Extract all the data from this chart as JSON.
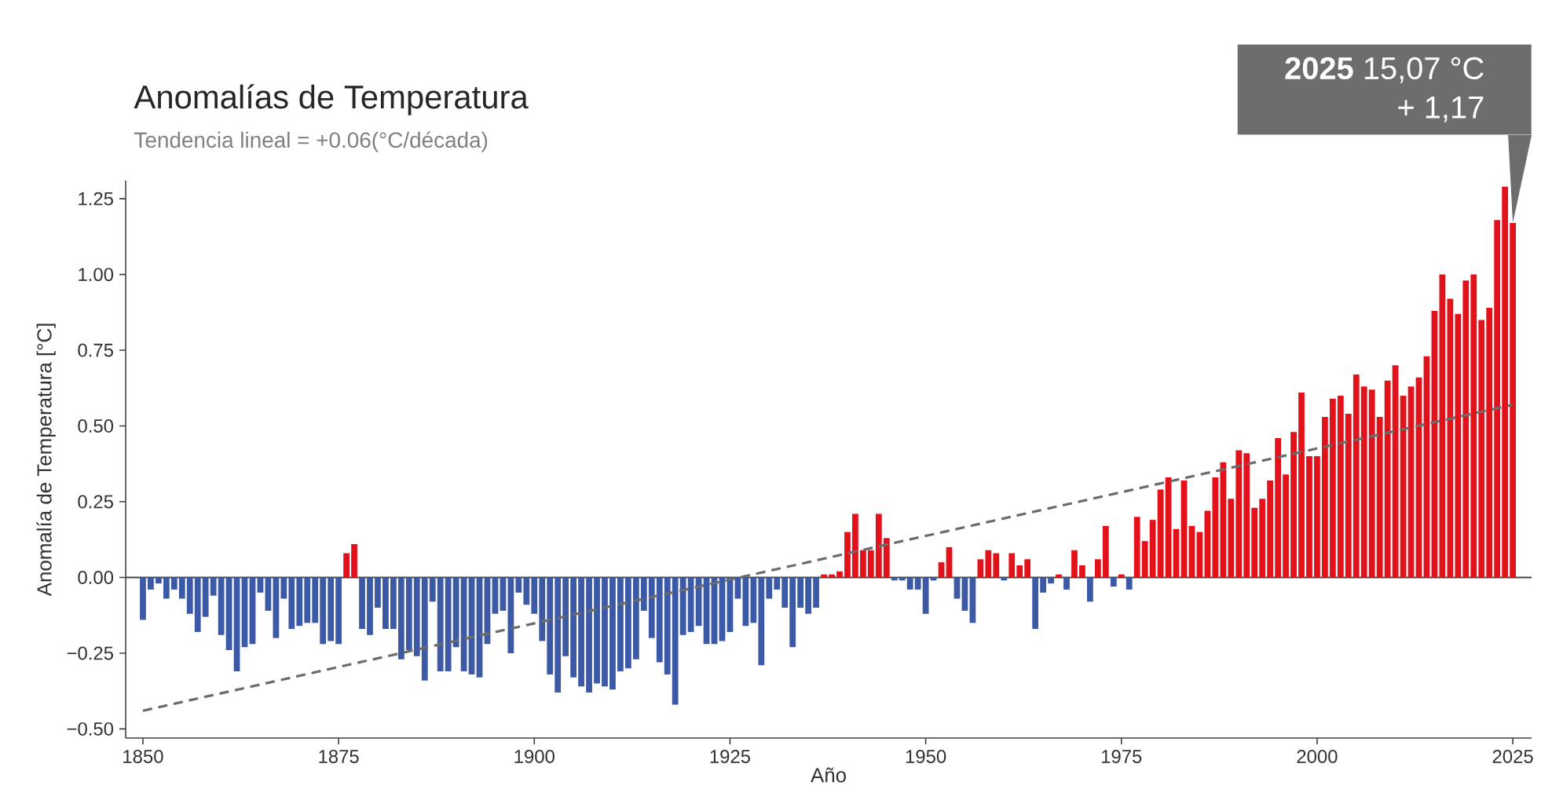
{
  "chart_data": {
    "type": "bar",
    "title": "Anomalías de Temperatura",
    "subtitle": "Tendencia lineal = +0.06(°C/década)",
    "xlabel": "Año",
    "ylabel": "Anomalía de Temperatura [°C]",
    "annotations": [
      "**2025** 15,07 °C",
      {
        "text": "+ 1,17",
        "x": 2025,
        "y": 1.17
      }
    ],
    "x": [
      1850,
      1851,
      1852,
      1853,
      1854,
      1855,
      1856,
      1857,
      1858,
      1859,
      1860,
      1861,
      1862,
      1863,
      1864,
      1865,
      1866,
      1867,
      1868,
      1869,
      1870,
      1871,
      1872,
      1873,
      1874,
      1875,
      1876,
      1877,
      1878,
      1879,
      1880,
      1881,
      1882,
      1883,
      1884,
      1885,
      1886,
      1887,
      1888,
      1889,
      1890,
      1891,
      1892,
      1893,
      1894,
      1895,
      1896,
      1897,
      1898,
      1899,
      1900,
      1901,
      1902,
      1903,
      1904,
      1905,
      1906,
      1907,
      1908,
      1909,
      1910,
      1911,
      1912,
      1913,
      1914,
      1915,
      1916,
      1917,
      1918,
      1919,
      1920,
      1921,
      1922,
      1923,
      1924,
      1925,
      1926,
      1927,
      1928,
      1929,
      1930,
      1931,
      1932,
      1933,
      1934,
      1935,
      1936,
      1937,
      1938,
      1939,
      1940,
      1941,
      1942,
      1943,
      1944,
      1945,
      1946,
      1947,
      1948,
      1949,
      1950,
      1951,
      1952,
      1953,
      1954,
      1955,
      1956,
      1957,
      1958,
      1959,
      1960,
      1961,
      1962,
      1963,
      1964,
      1965,
      1966,
      1967,
      1968,
      1969,
      1970,
      1971,
      1972,
      1973,
      1974,
      1975,
      1976,
      1977,
      1978,
      1979,
      1980,
      1981,
      1982,
      1983,
      1984,
      1985,
      1986,
      1987,
      1988,
      1989,
      1990,
      1991,
      1992,
      1993,
      1994,
      1995,
      1996,
      1997,
      1998,
      1999,
      2000,
      2001,
      2002,
      2003,
      2004,
      2005,
      2006,
      2007,
      2008,
      2009,
      2010,
      2011,
      2012,
      2013,
      2014,
      2015,
      2016,
      2017,
      2018,
      2019,
      2020,
      2021,
      2022,
      2023,
      2024,
      2025
    ],
    "series": [
      {
        "values": [
          -0.14,
          -0.04,
          -0.02,
          -0.07,
          -0.04,
          -0.07,
          -0.12,
          -0.18,
          -0.13,
          -0.06,
          -0.19,
          -0.24,
          -0.31,
          -0.23,
          -0.22,
          -0.05,
          -0.11,
          -0.2,
          -0.07,
          -0.17,
          -0.16,
          -0.15,
          -0.15,
          -0.22,
          -0.21,
          -0.22,
          0.08,
          0.11,
          -0.17,
          -0.19,
          -0.1,
          -0.17,
          -0.17,
          -0.27,
          -0.24,
          -0.26,
          -0.34,
          -0.08,
          -0.31,
          -0.31,
          -0.23,
          -0.31,
          -0.32,
          -0.33,
          -0.22,
          -0.12,
          -0.11,
          -0.25,
          -0.05,
          -0.09,
          -0.12,
          -0.21,
          -0.32,
          -0.38,
          -0.26,
          -0.33,
          -0.36,
          -0.38,
          -0.35,
          -0.36,
          -0.37,
          -0.31,
          -0.3,
          -0.27,
          -0.11,
          -0.2,
          -0.28,
          -0.32,
          -0.42,
          -0.19,
          -0.18,
          -0.16,
          -0.22,
          -0.22,
          -0.21,
          -0.18,
          -0.07,
          -0.16,
          -0.15,
          -0.29,
          -0.07,
          -0.04,
          -0.1,
          -0.23,
          -0.1,
          -0.12,
          -0.1,
          0.01,
          0.01,
          0.02,
          0.15,
          0.21,
          0.09,
          0.09,
          0.21,
          0.13,
          -0.01,
          -0.01,
          -0.04,
          -0.04,
          -0.12,
          -0.01,
          0.05,
          0.1,
          -0.07,
          -0.11,
          -0.15,
          0.06,
          0.09,
          0.08,
          -0.01,
          0.08,
          0.04,
          0.06,
          -0.17,
          -0.05,
          -0.02,
          0.01,
          -0.04,
          0.09,
          0.04,
          -0.08,
          0.06,
          0.17,
          -0.03,
          0.01,
          -0.04,
          0.2,
          0.12,
          0.19,
          0.29,
          0.33,
          0.16,
          0.32,
          0.17,
          0.15,
          0.22,
          0.33,
          0.38,
          0.26,
          0.42,
          0.41,
          0.23,
          0.26,
          0.32,
          0.46,
          0.34,
          0.48,
          0.61,
          0.4,
          0.4,
          0.53,
          0.59,
          0.6,
          0.54,
          0.67,
          0.63,
          0.62,
          0.53,
          0.65,
          0.7,
          0.6,
          0.63,
          0.66,
          0.73,
          0.88,
          1.0,
          0.92,
          0.87,
          0.98,
          1.0,
          0.85,
          0.89,
          1.18,
          1.29,
          1.17
        ],
        "colors": [
          "#3b59a5",
          "#3b59a5",
          "#3b59a5",
          "#3b59a5",
          "#3b59a5",
          "#3b59a5",
          "#3b59a5",
          "#3b59a5",
          "#3b59a5",
          "#3b59a5",
          "#3b59a5",
          "#3b59a5",
          "#3b59a5",
          "#3b59a5",
          "#3b59a5",
          "#3b59a5",
          "#3b59a5",
          "#3b59a5",
          "#3b59a5",
          "#3b59a5",
          "#3b59a5",
          "#3b59a5",
          "#3b59a5",
          "#3b59a5",
          "#3b59a5",
          "#3b59a5",
          "#e3111a",
          "#e3111a",
          "#3b59a5",
          "#3b59a5",
          "#3b59a5",
          "#3b59a5",
          "#3b59a5",
          "#3b59a5",
          "#3b59a5",
          "#3b59a5",
          "#3b59a5",
          "#3b59a5",
          "#3b59a5",
          "#3b59a5",
          "#3b59a5",
          "#3b59a5",
          "#3b59a5",
          "#3b59a5",
          "#3b59a5",
          "#3b59a5",
          "#3b59a5",
          "#3b59a5",
          "#3b59a5",
          "#3b59a5",
          "#3b59a5",
          "#3b59a5",
          "#3b59a5",
          "#3b59a5",
          "#3b59a5",
          "#3b59a5",
          "#3b59a5",
          "#3b59a5",
          "#3b59a5",
          "#3b59a5",
          "#3b59a5",
          "#3b59a5",
          "#3b59a5",
          "#3b59a5",
          "#3b59a5",
          "#3b59a5",
          "#3b59a5",
          "#3b59a5",
          "#3b59a5",
          "#3b59a5",
          "#3b59a5",
          "#3b59a5",
          "#3b59a5",
          "#3b59a5",
          "#3b59a5",
          "#3b59a5",
          "#3b59a5",
          "#3b59a5",
          "#3b59a5",
          "#3b59a5",
          "#3b59a5",
          "#3b59a5",
          "#3b59a5",
          "#3b59a5",
          "#3b59a5",
          "#3b59a5",
          "#3b59a5",
          "#e3111a",
          "#e3111a",
          "#e3111a",
          "#e3111a",
          "#e3111a",
          "#e3111a",
          "#e3111a",
          "#e3111a",
          "#e3111a",
          "#3b59a5",
          "#3b59a5",
          "#3b59a5",
          "#3b59a5",
          "#3b59a5",
          "#3b59a5",
          "#e3111a",
          "#e3111a",
          "#3b59a5",
          "#3b59a5",
          "#3b59a5",
          "#e3111a",
          "#e3111a",
          "#e3111a",
          "#3b59a5",
          "#e3111a",
          "#e3111a",
          "#e3111a",
          "#3b59a5",
          "#3b59a5",
          "#3b59a5",
          "#e3111a",
          "#3b59a5",
          "#e3111a",
          "#e3111a",
          "#3b59a5",
          "#e3111a",
          "#e3111a",
          "#3b59a5",
          "#e3111a",
          "#3b59a5",
          "#e3111a",
          "#e3111a",
          "#e3111a",
          "#e3111a",
          "#e3111a",
          "#e3111a",
          "#e3111a",
          "#e3111a",
          "#e3111a",
          "#e3111a",
          "#e3111a",
          "#e3111a",
          "#e3111a",
          "#e3111a",
          "#e3111a",
          "#e3111a",
          "#e3111a",
          "#e3111a",
          "#e3111a",
          "#e3111a",
          "#e3111a",
          "#e3111a",
          "#e3111a",
          "#e3111a",
          "#e3111a",
          "#e3111a",
          "#e3111a",
          "#e3111a",
          "#e3111a",
          "#e3111a",
          "#e3111a",
          "#e3111a",
          "#e3111a",
          "#e3111a",
          "#e3111a",
          "#e3111a",
          "#e3111a",
          "#e3111a",
          "#e3111a",
          "#e3111a",
          "#e3111a",
          "#e3111a",
          "#e3111a",
          "#e3111a",
          "#e3111a",
          "#e3111a",
          "#e3111a",
          "#e3111a",
          "#e3111a"
        ]
      },
      {
        "type": "line",
        "x": [
          1850,
          2025
        ],
        "values": [
          -0.44,
          0.57
        ],
        "color": "#6b6b6b",
        "line_style": "dashed"
      }
    ],
    "ref_lines": [
      {
        "axis": "y",
        "value": 0,
        "color": "#444444"
      }
    ],
    "xlim": [
      1847.8,
      2027.4
    ],
    "ylim": [
      -0.53,
      1.31
    ],
    "xticks": [
      1850,
      1875,
      1900,
      1925,
      1950,
      1975,
      2000,
      2025
    ],
    "yticks": [
      {
        "value": -0.5,
        "label": "−0.50"
      },
      {
        "value": -0.25,
        "label": "−0.25"
      },
      {
        "value": 0,
        "label": "0.00"
      },
      {
        "value": 0.25,
        "label": "0.25"
      },
      {
        "value": 0.5,
        "label": "0.50"
      },
      {
        "value": 0.75,
        "label": "0.75"
      },
      {
        "value": 1.0,
        "label": "1.00"
      },
      {
        "value": 1.25,
        "label": "1.25"
      }
    ],
    "marker": "none"
  }
}
